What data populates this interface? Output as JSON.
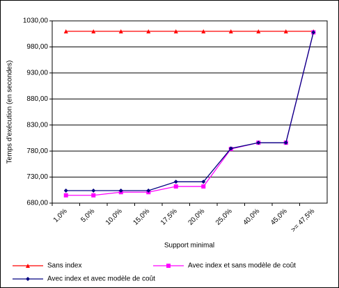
{
  "chart_data": {
    "type": "line",
    "y_label": "Temps d'exécution (en secondes)",
    "x_label": "Support minimal",
    "categories": [
      "1,0%",
      "5,0%",
      "10,0%",
      "15,0%",
      "17,5%",
      "20,0%",
      "25,0%",
      "40,0%",
      "45,0%",
      ">= 47,5%"
    ],
    "series": [
      {
        "name": "Sans index",
        "color": "#ff0000",
        "marker": "triangle",
        "values": [
          1010,
          1010,
          1010,
          1010,
          1010,
          1010,
          1010,
          1010,
          1010,
          1010
        ]
      },
      {
        "name": "Avec index et sans modèle de coût",
        "color": "#ff00ff",
        "marker": "square",
        "values": [
          695,
          695,
          701,
          701,
          712,
          712,
          784,
          796,
          796,
          1008
        ]
      },
      {
        "name": "Avec index et avec modèle de coût",
        "color": "#000080",
        "marker": "diamond",
        "values": [
          704,
          704,
          704,
          704,
          721,
          721,
          785,
          796,
          796,
          1008
        ]
      }
    ],
    "ylim": [
      680,
      1030
    ],
    "yticks": [
      {
        "value": 680,
        "label": "680,00"
      },
      {
        "value": 730,
        "label": "730,00"
      },
      {
        "value": 780,
        "label": "780,00"
      },
      {
        "value": 830,
        "label": "830,00"
      },
      {
        "value": 880,
        "label": "880,00"
      },
      {
        "value": 930,
        "label": "930,00"
      },
      {
        "value": 980,
        "label": "980,00"
      },
      {
        "value": 1030,
        "label": "1030,00"
      }
    ],
    "grid": true,
    "legend": "bottom"
  }
}
